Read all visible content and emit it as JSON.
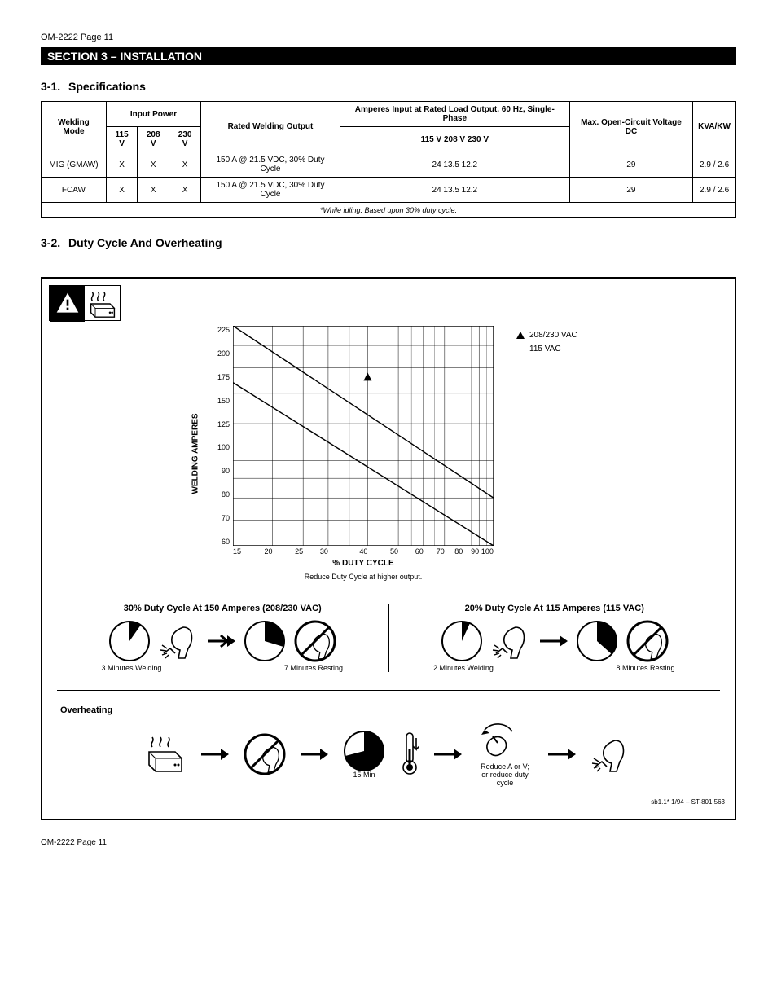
{
  "page_header": "OM-2222 Page 11",
  "black_bar": "SECTION 3 – INSTALLATION",
  "table_section_num": "3-1.",
  "table_section_title": "Specifications",
  "duty_section_num": "3-2.",
  "duty_section_title": "Duty Cycle And Overheating",
  "table": {
    "columns_row1": [
      {
        "label": "Welding Mode",
        "rowspan": 2
      },
      {
        "label": "Input Power",
        "colspan": 3
      },
      {
        "label": "Rated Welding Output",
        "rowspan": 2
      },
      {
        "label": "Amperes Input at Rated Load Output, 60 Hz, Single-Phase",
        "colspan": 1,
        "rowspan": 1
      },
      {
        "label": "Max. Open-Circuit Voltage DC",
        "rowspan": 2
      },
      {
        "label": "KVA/KW",
        "rowspan": 2
      }
    ],
    "columns_row2": [
      "115 V",
      "208 V",
      "230 V",
      "115 V  208 V  230 V"
    ],
    "rows": [
      [
        "MIG (GMAW)",
        "X",
        "X",
        "X",
        "150 A @ 21.5 VDC, 30% Duty Cycle",
        "24   13.5   12.2",
        "29",
        "2.9 / 2.6"
      ],
      [
        "FCAW",
        "X",
        "X",
        "X",
        "150 A @ 21.5 VDC, 30% Duty Cycle",
        "24   13.5   12.2",
        "29",
        "2.9 / 2.6"
      ]
    ],
    "footnote": "*While idling. Based upon 30% duty cycle."
  },
  "chart": {
    "type": "line",
    "ylabel": "WELDING AMPERES",
    "xlabel": "% DUTY CYCLE",
    "ylim": [
      60,
      225
    ],
    "ytick_labels": [
      "225",
      "200",
      "175",
      "150",
      "125",
      "100",
      "90",
      "80",
      "70",
      "60"
    ],
    "xtick_labels": [
      "15",
      "20",
      "25",
      "30",
      "40",
      "50",
      "60",
      "70",
      "80",
      "90",
      "100"
    ],
    "minor_x": [
      35,
      45,
      55,
      65,
      75,
      85,
      95
    ],
    "series": [
      {
        "name": "208/230 VAC",
        "points": [
          [
            15,
            225
          ],
          [
            100,
            80
          ]
        ],
        "color": "#000000",
        "linewidth": 1.4,
        "marker": "triangle",
        "marker_at": [
          40,
          165
        ]
      },
      {
        "name": "115 VAC",
        "points": [
          [
            15,
            160
          ],
          [
            100,
            60
          ]
        ],
        "color": "#000000",
        "linewidth": 1.4
      }
    ],
    "background_color": "#ffffff",
    "grid_color": "#000000",
    "grid_linewidth": 0.5,
    "reduce_note": "Reduce Duty Cycle at higher output."
  },
  "legend": {
    "items": [
      {
        "label": "208/230 VAC",
        "marker": "triangle"
      },
      {
        "label": "115 VAC",
        "marker": "none"
      }
    ]
  },
  "cycles": {
    "left": {
      "title": "30% Duty Cycle At 150 Amperes (208/230 VAC)",
      "weld_minutes": "3 Minutes Welding",
      "rest_minutes": "7 Minutes Resting"
    },
    "right": {
      "title": "20% Duty Cycle At 115 Amperes (115 VAC)",
      "weld_minutes": "2 Minutes Welding",
      "rest_minutes": "8 Minutes Resting"
    }
  },
  "overheat": {
    "title": "Overheating",
    "steps": [
      "Stop welding",
      "Wait 15 minutes",
      "Cool down",
      "Reduce amperage or duty cycle",
      "Resume welding"
    ],
    "wait_label": "15 Min",
    "note2": "Reduce A or V; or reduce duty cycle"
  },
  "caption": "sb1.1* 1/94 – ST-801 563",
  "footer_left": "OM-2222 Page 11",
  "footer_right": ""
}
